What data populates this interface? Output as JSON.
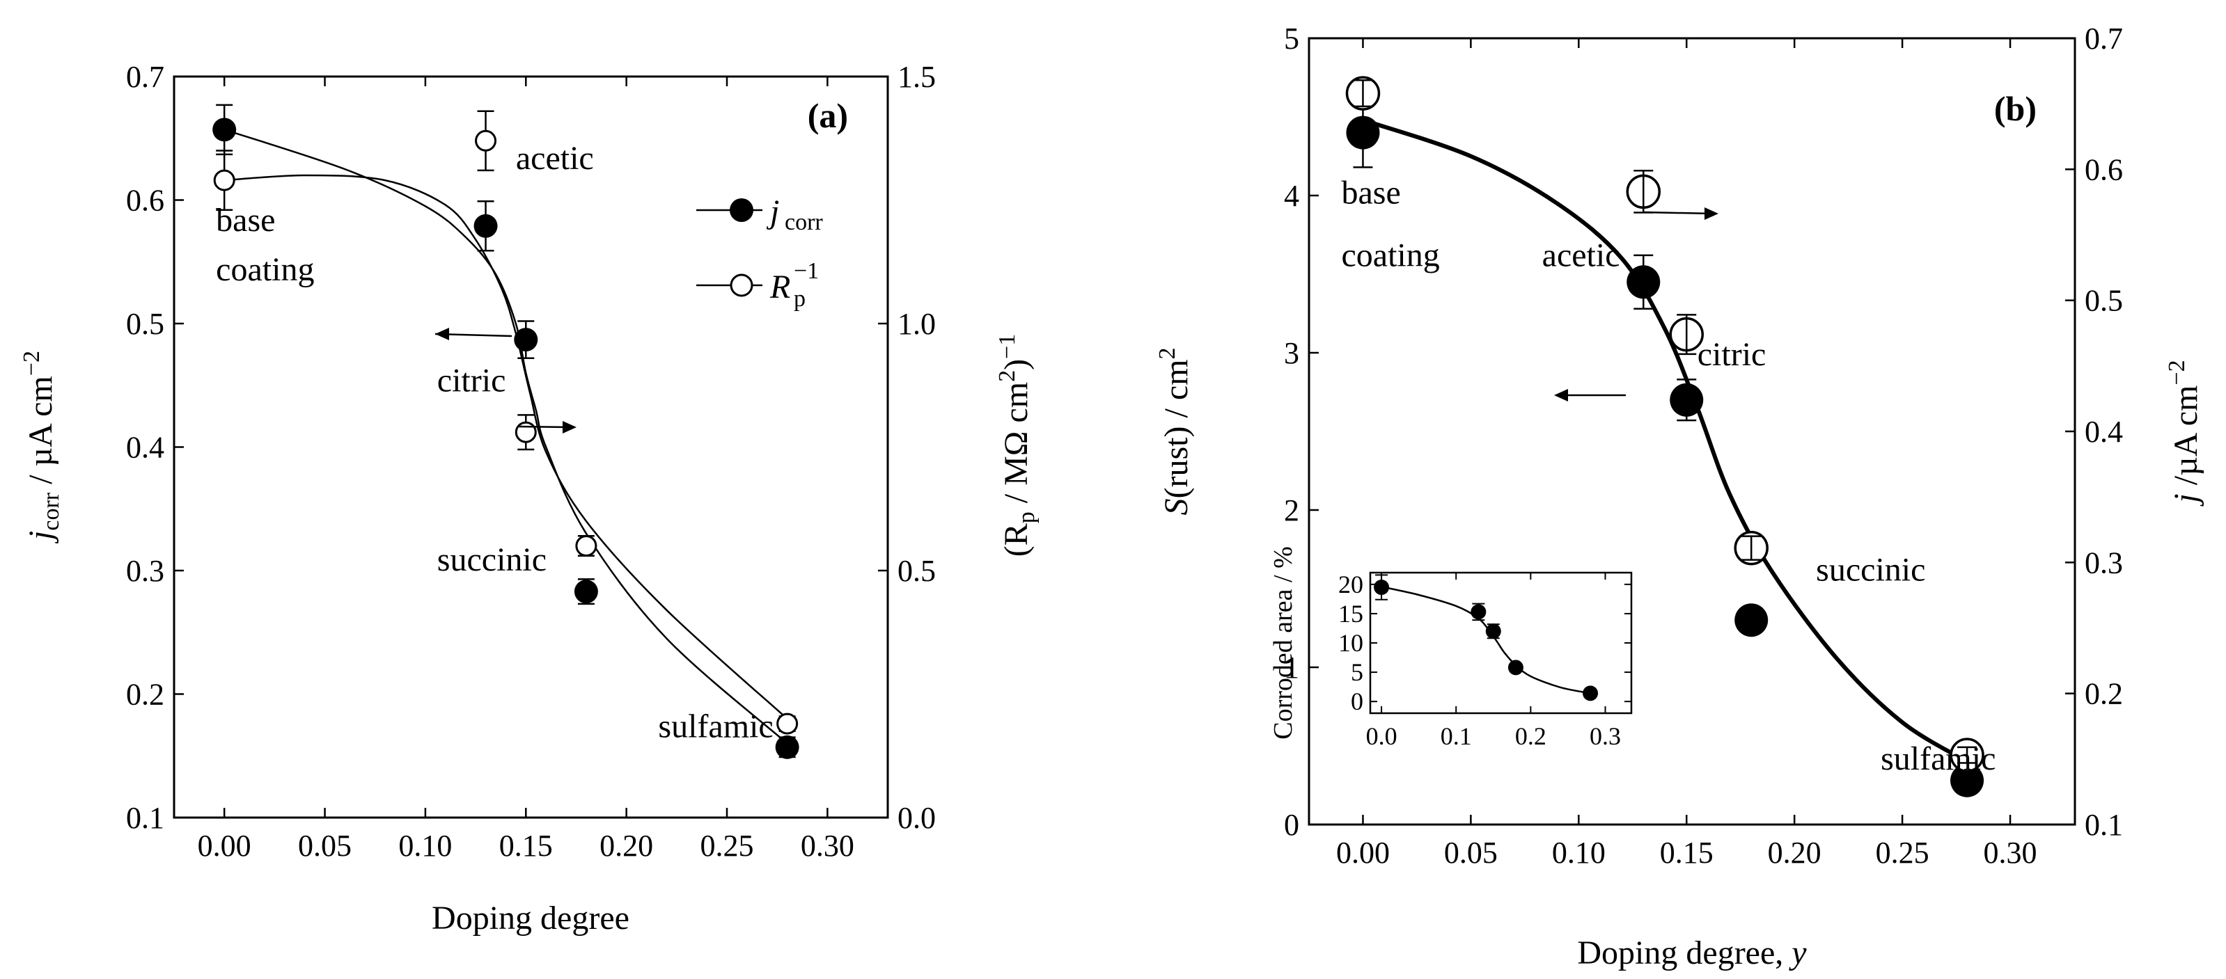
{
  "chart_data": [
    {
      "type": "scatter",
      "panel_tag": "(a)",
      "x": [
        0.0,
        0.13,
        0.15,
        0.18,
        0.28
      ],
      "xlabel": "Doping degree",
      "xlim": [
        -0.025,
        0.33
      ],
      "xticks": [
        "0.00",
        "0.05",
        "0.10",
        "0.15",
        "0.20",
        "0.25",
        "0.30"
      ],
      "xtick_values": [
        0,
        0.05,
        0.1,
        0.15,
        0.2,
        0.25,
        0.3
      ],
      "ylabel_left": {
        "main": "j",
        "sub": "corr",
        "unit": " / µA cm",
        "sup": "−2"
      },
      "ylim_left": [
        0.1,
        0.7
      ],
      "yticks_left": [
        "0.1",
        "0.2",
        "0.3",
        "0.4",
        "0.5",
        "0.6",
        "0.7"
      ],
      "ytick_values_left": [
        0.1,
        0.2,
        0.3,
        0.4,
        0.5,
        0.6,
        0.7
      ],
      "ylabel_right": {
        "open": "(R",
        "sub": "p",
        "unit": " / MΩ cm",
        "sup2": "2",
        "close": ")",
        "sup": "−1"
      },
      "ylim_right": [
        0.0,
        1.5
      ],
      "yticks_right": [
        "0.0",
        "0.5",
        "1.0",
        "1.5"
      ],
      "ytick_values_right": [
        0,
        0.5,
        1.0,
        1.5
      ],
      "series": [
        {
          "name": "jcorr",
          "legend": {
            "main": "j",
            "sub": "corr"
          },
          "marker": "filled-circle",
          "axis": "left",
          "values": [
            0.657,
            0.579,
            0.487,
            0.283,
            0.157
          ],
          "errors": [
            0.02,
            0.02,
            0.015,
            0.01,
            0.008
          ],
          "curve": [
            [
              0.0,
              0.657
            ],
            [
              0.06,
              0.625
            ],
            [
              0.1,
              0.595
            ],
            [
              0.12,
              0.57
            ],
            [
              0.135,
              0.54
            ],
            [
              0.145,
              0.5
            ],
            [
              0.15,
              0.46
            ],
            [
              0.155,
              0.43
            ],
            [
              0.16,
              0.4
            ],
            [
              0.18,
              0.33
            ],
            [
              0.22,
              0.245
            ],
            [
              0.28,
              0.16
            ]
          ]
        },
        {
          "name": "Rp-1",
          "legend": {
            "main": "R",
            "sub": "p",
            "sup": "−1"
          },
          "marker": "open-circle",
          "axis": "right",
          "values": [
            1.29,
            1.37,
            0.78,
            0.55,
            0.19
          ],
          "errors": [
            0.06,
            0.06,
            0.035,
            0.02,
            0.015
          ],
          "curve": [
            [
              0.0,
              1.29
            ],
            [
              0.04,
              1.3
            ],
            [
              0.08,
              1.29
            ],
            [
              0.11,
              1.24
            ],
            [
              0.125,
              1.17
            ],
            [
              0.138,
              1.07
            ],
            [
              0.145,
              0.98
            ],
            [
              0.152,
              0.86
            ],
            [
              0.16,
              0.74
            ],
            [
              0.18,
              0.6
            ],
            [
              0.22,
              0.42
            ],
            [
              0.28,
              0.2
            ]
          ]
        }
      ],
      "annotations": [
        {
          "text": "base",
          "x": 0.0,
          "y": 0.575
        },
        {
          "text": "coating",
          "x": 0.0,
          "y": 0.535
        },
        {
          "text": "acetic",
          "x": 0.145,
          "y": 0.625
        },
        {
          "text": "citric",
          "x": 0.11,
          "y": 0.445
        },
        {
          "text": "succinic",
          "x": 0.11,
          "y": 0.3
        },
        {
          "text": "sulfamic",
          "x": 0.22,
          "y": 0.165
        }
      ]
    },
    {
      "type": "scatter",
      "panel_tag": "(b)",
      "x": [
        0.0,
        0.13,
        0.15,
        0.18,
        0.28
      ],
      "xlabel": {
        "text": "Doping degree, ",
        "var": "y"
      },
      "xlim": [
        -0.025,
        0.33
      ],
      "xticks": [
        "0.00",
        "0.05",
        "0.10",
        "0.15",
        "0.20",
        "0.25",
        "0.30"
      ],
      "xtick_values": [
        0,
        0.05,
        0.1,
        0.15,
        0.2,
        0.25,
        0.3
      ],
      "ylabel_left": {
        "main": "S",
        "paren": "(rust) / cm",
        "sup": "2"
      },
      "ylim_left": [
        0,
        5
      ],
      "yticks_left": [
        "0",
        "1",
        "2",
        "3",
        "4",
        "5"
      ],
      "ytick_values_left": [
        0,
        1,
        2,
        3,
        4,
        5
      ],
      "ylabel_right": {
        "main": "j",
        "unit": " /µA cm",
        "sup": "−2"
      },
      "ylim_right": [
        0.1,
        0.7
      ],
      "yticks_right": [
        "0.1",
        "0.2",
        "0.3",
        "0.4",
        "0.5",
        "0.6",
        "0.7"
      ],
      "ytick_values_right": [
        0.1,
        0.2,
        0.3,
        0.4,
        0.5,
        0.6,
        0.7
      ],
      "series": [
        {
          "name": "S(rust)",
          "marker": "filled-circle",
          "axis": "left",
          "values": [
            4.4,
            3.45,
            2.7,
            1.3,
            0.28
          ],
          "errors": [
            0.22,
            0.17,
            0.13,
            0.05,
            0.04
          ],
          "curve": [
            [
              0.0,
              4.48
            ],
            [
              0.05,
              4.25
            ],
            [
              0.09,
              3.95
            ],
            [
              0.12,
              3.6
            ],
            [
              0.14,
              3.15
            ],
            [
              0.155,
              2.65
            ],
            [
              0.17,
              2.1
            ],
            [
              0.19,
              1.6
            ],
            [
              0.22,
              1.05
            ],
            [
              0.25,
              0.65
            ],
            [
              0.28,
              0.4
            ]
          ]
        },
        {
          "name": "j",
          "marker": "open-circle",
          "axis": "right",
          "values": [
            0.658,
            0.583,
            0.474,
            0.311,
            0.153
          ],
          "errors": [
            0.01,
            0.016,
            0.015,
            0.009,
            0.006
          ]
        }
      ],
      "annotations": [
        {
          "text": "base",
          "x": -0.01,
          "y": 3.95
        },
        {
          "text": "coating",
          "x": -0.01,
          "y": 3.55
        },
        {
          "text": "acetic",
          "x": 0.083,
          "y": 3.55
        },
        {
          "text": "citric",
          "x": 0.155,
          "y": 2.92
        },
        {
          "text": "succinic",
          "x": 0.21,
          "y": 1.55
        },
        {
          "text": "sulfamic",
          "x": 0.24,
          "y": 0.35
        }
      ],
      "inset": {
        "type": "scatter",
        "ylabel": "Corroded area / %",
        "x": [
          0.0,
          0.13,
          0.15,
          0.18,
          0.28
        ],
        "values": [
          19.5,
          15.3,
          12,
          5.8,
          1.4
        ],
        "errors": [
          2.1,
          1.4,
          1.2,
          0.5,
          0.2
        ],
        "xlim": [
          -0.015,
          0.335
        ],
        "ylim": [
          -2,
          22
        ],
        "xticks": [
          "0.0",
          "0.1",
          "0.2",
          "0.3"
        ],
        "xtick_values": [
          0,
          0.1,
          0.2,
          0.3
        ],
        "yticks": [
          "0",
          "5",
          "10",
          "15",
          "20"
        ],
        "ytick_values": [
          0,
          5,
          10,
          15,
          20
        ],
        "curve": [
          [
            0.0,
            19.6
          ],
          [
            0.05,
            18.2
          ],
          [
            0.1,
            16.3
          ],
          [
            0.13,
            14.2
          ],
          [
            0.145,
            12.0
          ],
          [
            0.155,
            10.2
          ],
          [
            0.165,
            8.3
          ],
          [
            0.18,
            6.2
          ],
          [
            0.2,
            4.3
          ],
          [
            0.24,
            2.4
          ],
          [
            0.28,
            1.4
          ]
        ]
      }
    }
  ]
}
